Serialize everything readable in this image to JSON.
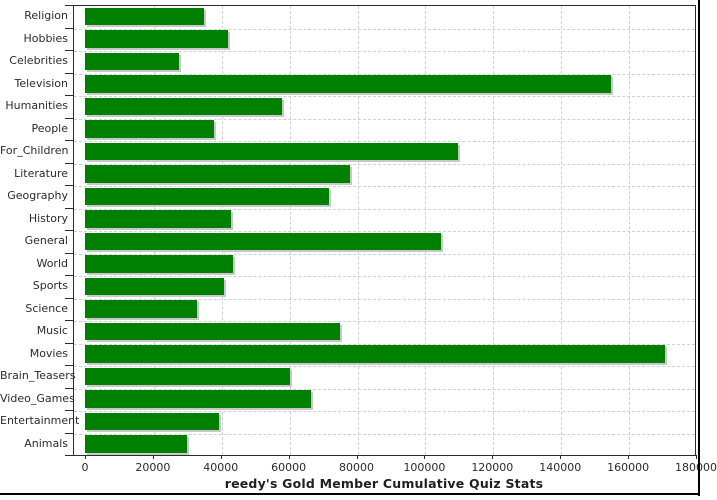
{
  "chart_data": {
    "type": "bar",
    "orientation": "horizontal",
    "title": "reedy's Gold Member Cumulative Quiz Stats",
    "xlabel": "",
    "ylabel": "",
    "xlim": [
      0,
      180000
    ],
    "x_tick_interval": 20000,
    "x_ticks": [
      "0",
      "20000",
      "40000",
      "60000",
      "80000",
      "100000",
      "120000",
      "140000",
      "160000",
      "180000"
    ],
    "grid": "dashed",
    "legend": "none",
    "categories": [
      "Religion",
      "Hobbies",
      "Celebrities",
      "Television",
      "Humanities",
      "People",
      "For_Children",
      "Literature",
      "Geography",
      "History",
      "General",
      "World",
      "Sports",
      "Science",
      "Music",
      "Movies",
      "Brain_Teasers",
      "Video_Games",
      "Entertainment",
      "Animals"
    ],
    "values": [
      35000,
      42000,
      27800,
      155000,
      58000,
      38000,
      110000,
      78000,
      72000,
      43000,
      105000,
      43500,
      41000,
      33000,
      75000,
      171000,
      60500,
      66500,
      39500,
      30000
    ],
    "colors": {
      "bar": "#008000",
      "bar_shadow": "#c8c8c8",
      "gridline": "#cdd0d4",
      "axis": "#2b2b2b",
      "text": "#2b2b2b",
      "background": "#ffffff"
    }
  }
}
